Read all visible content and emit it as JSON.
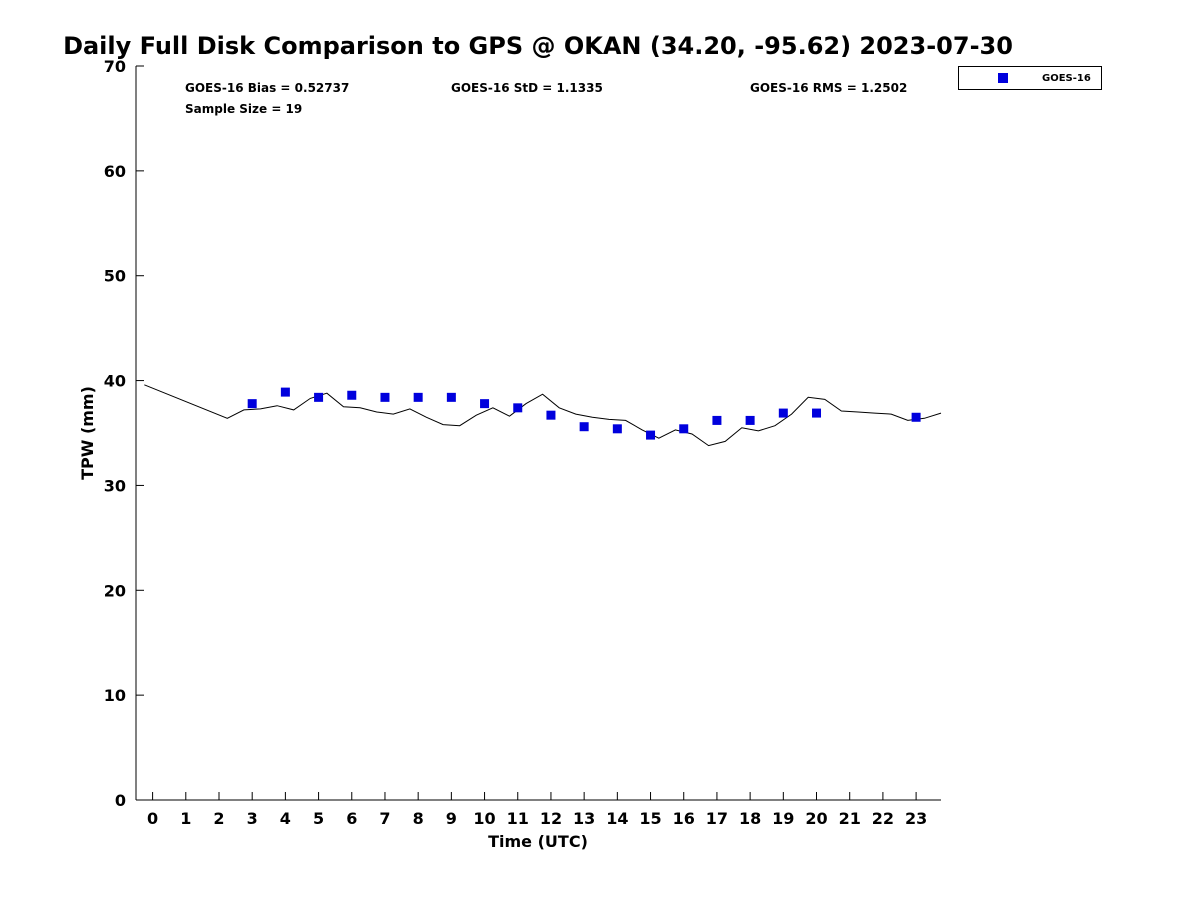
{
  "chart_data": {
    "type": "scatter",
    "title": "Daily Full Disk Comparison to GPS @ OKAN (34.20, -95.62) 2023-07-30",
    "xlabel": "Time (UTC)",
    "ylabel": "TPW (mm)",
    "xlim": [
      -0.5,
      23.75
    ],
    "ylim": [
      0,
      70
    ],
    "x_ticks": [
      0,
      1,
      2,
      3,
      4,
      5,
      6,
      7,
      8,
      9,
      10,
      11,
      12,
      13,
      14,
      15,
      16,
      17,
      18,
      19,
      20,
      21,
      22,
      23
    ],
    "y_ticks": [
      0,
      10,
      20,
      30,
      40,
      50,
      60,
      70
    ],
    "grid": false,
    "legend_position": "top-right",
    "stats": {
      "bias": "GOES-16 Bias = 0.52737",
      "std": "GOES-16 StD = 1.1335",
      "rms": "GOES-16 RMS = 1.2502",
      "sample_size": "Sample Size = 19"
    },
    "series": [
      {
        "name": "GOES-16",
        "kind": "markers",
        "marker": "square",
        "color": "#0000dd",
        "x": [
          3,
          4,
          5,
          6,
          7,
          8,
          9,
          10,
          11,
          12,
          13,
          14,
          15,
          16,
          17,
          18,
          19,
          20,
          23
        ],
        "y": [
          37.8,
          38.9,
          38.4,
          38.6,
          38.4,
          38.4,
          38.4,
          37.8,
          37.4,
          36.7,
          35.6,
          35.4,
          34.8,
          35.4,
          36.2,
          36.2,
          36.9,
          36.9,
          36.5
        ]
      },
      {
        "kind": "line",
        "color": "#000000",
        "x": [
          -0.25,
          2.25,
          2.75,
          3.25,
          3.75,
          4.25,
          4.75,
          5.25,
          5.75,
          6.25,
          6.75,
          7.25,
          7.75,
          8.25,
          8.75,
          9.25,
          9.75,
          10.25,
          10.75,
          11.25,
          11.75,
          12.25,
          12.75,
          13.25,
          13.75,
          14.25,
          14.75,
          15.25,
          15.75,
          16.25,
          16.75,
          17.25,
          17.75,
          18.25,
          18.75,
          19.25,
          19.75,
          20.25,
          20.75,
          21.25,
          21.75,
          22.25,
          22.75,
          23.25,
          23.75
        ],
        "y": [
          39.6,
          36.4,
          37.2,
          37.3,
          37.6,
          37.2,
          38.3,
          38.8,
          37.5,
          37.4,
          37.0,
          36.8,
          37.3,
          36.5,
          35.8,
          35.7,
          36.7,
          37.4,
          36.6,
          37.8,
          38.7,
          37.4,
          36.8,
          36.5,
          36.3,
          36.2,
          35.3,
          34.5,
          35.3,
          34.9,
          33.8,
          34.2,
          35.5,
          35.2,
          35.7,
          36.8,
          38.4,
          38.2,
          37.1,
          37.0,
          36.9,
          36.8,
          36.2,
          36.4,
          36.9
        ]
      }
    ]
  }
}
